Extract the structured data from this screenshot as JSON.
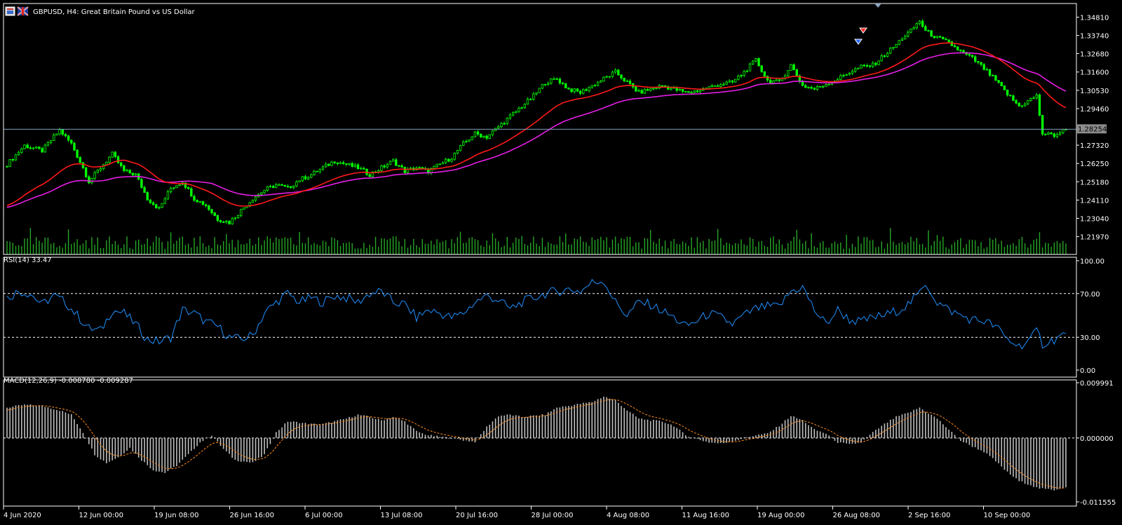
{
  "colors": {
    "background": "#000000",
    "foreground": "#ffffff",
    "candle": "#00ff00",
    "volume": "#26a626",
    "ma_fast": "#ff1a1a",
    "ma_slow": "#e61ee6",
    "rsi_line": "#1e90ff",
    "macd_hist": "#bfbfbf",
    "macd_signal": "#ff8c1a",
    "grid": "#ffffff",
    "bid_line": "#7f9fbf",
    "bid_label_bg": "#8c8c8c"
  },
  "icons": [
    "window-icon",
    "flag-icon",
    "sell-arrow-icon",
    "buy-arrow-icon",
    "last-bar-marker-icon"
  ],
  "chart_data": [
    {
      "type": "candlestick",
      "title": "GBPUSD, H4:  Great Britain Pound vs US Dollar",
      "ylim": [
        1.2142,
        1.3528
      ],
      "yticks": [
        "1.34810",
        "1.33740",
        "1.32680",
        "1.31600",
        "1.30530",
        "1.29460",
        "1.27320",
        "1.26250",
        "1.25180",
        "1.24110",
        "1.23040",
        "1.21970"
      ],
      "current_price": "1.28254",
      "xticks": [
        "4 Jun 2020",
        "12 Jun 00:00",
        "19 Jun 08:00",
        "26 Jun 16:00",
        "6 Jul 00:00",
        "13 Jul 08:00",
        "20 Jul 16:00",
        "28 Jul 00:00",
        "4 Aug 08:00",
        "11 Aug 16:00",
        "19 Aug 00:00",
        "26 Aug 08:00",
        "2 Sep 16:00",
        "10 Sep 00:00"
      ],
      "close_path": [
        [
          0,
          1.262
        ],
        [
          6,
          1.273
        ],
        [
          12,
          1.27
        ],
        [
          18,
          1.282
        ],
        [
          22,
          1.274
        ],
        [
          26,
          1.26
        ],
        [
          28,
          1.252
        ],
        [
          32,
          1.26
        ],
        [
          36,
          1.268
        ],
        [
          40,
          1.258
        ],
        [
          44,
          1.256
        ],
        [
          48,
          1.242
        ],
        [
          52,
          1.236
        ],
        [
          56,
          1.248
        ],
        [
          60,
          1.252
        ],
        [
          64,
          1.242
        ],
        [
          68,
          1.238
        ],
        [
          72,
          1.23
        ],
        [
          76,
          1.228
        ],
        [
          80,
          1.235
        ],
        [
          84,
          1.242
        ],
        [
          88,
          1.247
        ],
        [
          92,
          1.25
        ],
        [
          96,
          1.248
        ],
        [
          100,
          1.253
        ],
        [
          104,
          1.256
        ],
        [
          108,
          1.26
        ],
        [
          112,
          1.264
        ],
        [
          116,
          1.262
        ],
        [
          120,
          1.26
        ],
        [
          124,
          1.256
        ],
        [
          128,
          1.26
        ],
        [
          132,
          1.264
        ],
        [
          136,
          1.258
        ],
        [
          140,
          1.26
        ],
        [
          144,
          1.258
        ],
        [
          148,
          1.262
        ],
        [
          152,
          1.266
        ],
        [
          156,
          1.274
        ],
        [
          160,
          1.28
        ],
        [
          164,
          1.278
        ],
        [
          168,
          1.284
        ],
        [
          172,
          1.29
        ],
        [
          176,
          1.296
        ],
        [
          180,
          1.302
        ],
        [
          184,
          1.31
        ],
        [
          188,
          1.312
        ],
        [
          192,
          1.306
        ],
        [
          196,
          1.304
        ],
        [
          200,
          1.308
        ],
        [
          204,
          1.312
        ],
        [
          208,
          1.316
        ],
        [
          212,
          1.31
        ],
        [
          216,
          1.304
        ],
        [
          220,
          1.306
        ],
        [
          224,
          1.308
        ],
        [
          228,
          1.306
        ],
        [
          232,
          1.304
        ],
        [
          236,
          1.305
        ],
        [
          240,
          1.307
        ],
        [
          244,
          1.309
        ],
        [
          248,
          1.31
        ],
        [
          252,
          1.316
        ],
        [
          256,
          1.323
        ],
        [
          260,
          1.311
        ],
        [
          264,
          1.31
        ],
        [
          268,
          1.32
        ],
        [
          272,
          1.308
        ],
        [
          276,
          1.306
        ],
        [
          280,
          1.309
        ],
        [
          284,
          1.312
        ],
        [
          288,
          1.316
        ],
        [
          292,
          1.319
        ],
        [
          296,
          1.32
        ],
        [
          300,
          1.326
        ],
        [
          304,
          1.332
        ],
        [
          306,
          1.336
        ],
        [
          309,
          1.34
        ],
        [
          312,
          1.346
        ],
        [
          314,
          1.34
        ],
        [
          318,
          1.336
        ],
        [
          322,
          1.333
        ],
        [
          326,
          1.328
        ],
        [
          330,
          1.324
        ],
        [
          334,
          1.318
        ],
        [
          338,
          1.311
        ],
        [
          342,
          1.303
        ],
        [
          346,
          1.296
        ],
        [
          350,
          1.3
        ],
        [
          352,
          1.302
        ],
        [
          354,
          1.28
        ],
        [
          358,
          1.279
        ],
        [
          362,
          1.2825
        ]
      ]
    },
    {
      "type": "line",
      "title": "RSI(14) 33.47",
      "ylim": [
        0,
        100
      ],
      "yticks": [
        "100.00",
        "70.00",
        "30.00",
        "0.00"
      ],
      "levels": [
        70,
        30
      ],
      "path": [
        [
          0,
          66
        ],
        [
          4,
          72
        ],
        [
          8,
          70
        ],
        [
          12,
          60
        ],
        [
          16,
          68
        ],
        [
          20,
          62
        ],
        [
          24,
          50
        ],
        [
          28,
          38
        ],
        [
          32,
          36
        ],
        [
          36,
          55
        ],
        [
          40,
          52
        ],
        [
          44,
          42
        ],
        [
          48,
          28
        ],
        [
          52,
          26
        ],
        [
          56,
          30
        ],
        [
          60,
          55
        ],
        [
          64,
          52
        ],
        [
          68,
          44
        ],
        [
          72,
          40
        ],
        [
          76,
          30
        ],
        [
          80,
          28
        ],
        [
          84,
          32
        ],
        [
          88,
          52
        ],
        [
          92,
          62
        ],
        [
          96,
          70
        ],
        [
          100,
          62
        ],
        [
          104,
          66
        ],
        [
          108,
          62
        ],
        [
          112,
          68
        ],
        [
          116,
          66
        ],
        [
          120,
          62
        ],
        [
          124,
          70
        ],
        [
          128,
          72
        ],
        [
          132,
          62
        ],
        [
          136,
          60
        ],
        [
          140,
          48
        ],
        [
          144,
          55
        ],
        [
          148,
          52
        ],
        [
          152,
          48
        ],
        [
          156,
          52
        ],
        [
          160,
          62
        ],
        [
          164,
          68
        ],
        [
          168,
          64
        ],
        [
          172,
          56
        ],
        [
          176,
          62
        ],
        [
          180,
          66
        ],
        [
          184,
          70
        ],
        [
          188,
          72
        ],
        [
          192,
          74
        ],
        [
          196,
          72
        ],
        [
          200,
          80
        ],
        [
          204,
          82
        ],
        [
          208,
          62
        ],
        [
          212,
          50
        ],
        [
          216,
          62
        ],
        [
          220,
          60
        ],
        [
          224,
          54
        ],
        [
          228,
          48
        ],
        [
          232,
          40
        ],
        [
          236,
          45
        ],
        [
          240,
          52
        ],
        [
          244,
          48
        ],
        [
          248,
          42
        ],
        [
          252,
          50
        ],
        [
          256,
          56
        ],
        [
          260,
          58
        ],
        [
          264,
          58
        ],
        [
          268,
          72
        ],
        [
          272,
          76
        ],
        [
          276,
          55
        ],
        [
          280,
          42
        ],
        [
          284,
          55
        ],
        [
          288,
          46
        ],
        [
          292,
          44
        ],
        [
          296,
          48
        ],
        [
          300,
          50
        ],
        [
          304,
          54
        ],
        [
          308,
          60
        ],
        [
          312,
          70
        ],
        [
          314,
          80
        ],
        [
          318,
          62
        ],
        [
          322,
          55
        ],
        [
          326,
          50
        ],
        [
          330,
          46
        ],
        [
          334,
          45
        ],
        [
          338,
          40
        ],
        [
          342,
          28
        ],
        [
          346,
          22
        ],
        [
          350,
          28
        ],
        [
          352,
          36
        ],
        [
          354,
          24
        ],
        [
          358,
          28
        ],
        [
          362,
          33.47
        ]
      ]
    },
    {
      "type": "histogram",
      "title": "MACD(12,26,9) -0.008780 -0.009287",
      "ylim": [
        -0.011555,
        0.009991
      ],
      "yticks": [
        "0.009991",
        "0.000000",
        "-0.011555"
      ],
      "path": [
        [
          0,
          0.0055
        ],
        [
          6,
          0.006
        ],
        [
          12,
          0.0058
        ],
        [
          18,
          0.005
        ],
        [
          22,
          0.0042
        ],
        [
          26,
          0.001
        ],
        [
          30,
          -0.003
        ],
        [
          34,
          -0.0045
        ],
        [
          38,
          -0.0035
        ],
        [
          42,
          -0.0018
        ],
        [
          46,
          -0.004
        ],
        [
          50,
          -0.0058
        ],
        [
          54,
          -0.0063
        ],
        [
          58,
          -0.005
        ],
        [
          62,
          -0.003
        ],
        [
          66,
          -0.0008
        ],
        [
          70,
          0.0005
        ],
        [
          74,
          -0.002
        ],
        [
          78,
          -0.004
        ],
        [
          84,
          -0.0045
        ],
        [
          88,
          -0.003
        ],
        [
          92,
          0.001
        ],
        [
          96,
          0.003
        ],
        [
          100,
          0.0028
        ],
        [
          104,
          0.0025
        ],
        [
          108,
          0.0025
        ],
        [
          112,
          0.003
        ],
        [
          116,
          0.0035
        ],
        [
          120,
          0.0042
        ],
        [
          124,
          0.0038
        ],
        [
          128,
          0.0032
        ],
        [
          132,
          0.0038
        ],
        [
          136,
          0.003
        ],
        [
          140,
          0.0012
        ],
        [
          144,
          0.0005
        ],
        [
          148,
          0.0002
        ],
        [
          152,
          0.0
        ],
        [
          156,
          -0.0004
        ],
        [
          160,
          -0.0007
        ],
        [
          164,
          0.002
        ],
        [
          168,
          0.004
        ],
        [
          172,
          0.0042
        ],
        [
          176,
          0.0038
        ],
        [
          180,
          0.004
        ],
        [
          184,
          0.0042
        ],
        [
          188,
          0.0055
        ],
        [
          192,
          0.0058
        ],
        [
          196,
          0.0062
        ],
        [
          200,
          0.0065
        ],
        [
          204,
          0.0075
        ],
        [
          208,
          0.0068
        ],
        [
          212,
          0.005
        ],
        [
          216,
          0.0035
        ],
        [
          220,
          0.0032
        ],
        [
          224,
          0.003
        ],
        [
          228,
          0.0022
        ],
        [
          232,
          0.0005
        ],
        [
          236,
          -0.0002
        ],
        [
          240,
          -0.0008
        ],
        [
          244,
          -0.001
        ],
        [
          248,
          -0.0006
        ],
        [
          252,
          0.0
        ],
        [
          256,
          0.0005
        ],
        [
          260,
          0.0008
        ],
        [
          264,
          0.0022
        ],
        [
          268,
          0.004
        ],
        [
          272,
          0.0032
        ],
        [
          276,
          0.0015
        ],
        [
          280,
          0.0008
        ],
        [
          284,
          -0.0008
        ],
        [
          288,
          -0.0012
        ],
        [
          292,
          -0.0008
        ],
        [
          296,
          0.001
        ],
        [
          300,
          0.0025
        ],
        [
          304,
          0.0038
        ],
        [
          308,
          0.0045
        ],
        [
          312,
          0.0055
        ],
        [
          314,
          0.0048
        ],
        [
          318,
          0.0035
        ],
        [
          322,
          0.0015
        ],
        [
          326,
          -0.0005
        ],
        [
          330,
          -0.0015
        ],
        [
          334,
          -0.0025
        ],
        [
          338,
          -0.0042
        ],
        [
          342,
          -0.0062
        ],
        [
          346,
          -0.0078
        ],
        [
          350,
          -0.0085
        ],
        [
          352,
          -0.009
        ],
        [
          354,
          -0.0092
        ],
        [
          358,
          -0.0094
        ],
        [
          362,
          -0.0088
        ]
      ]
    }
  ]
}
